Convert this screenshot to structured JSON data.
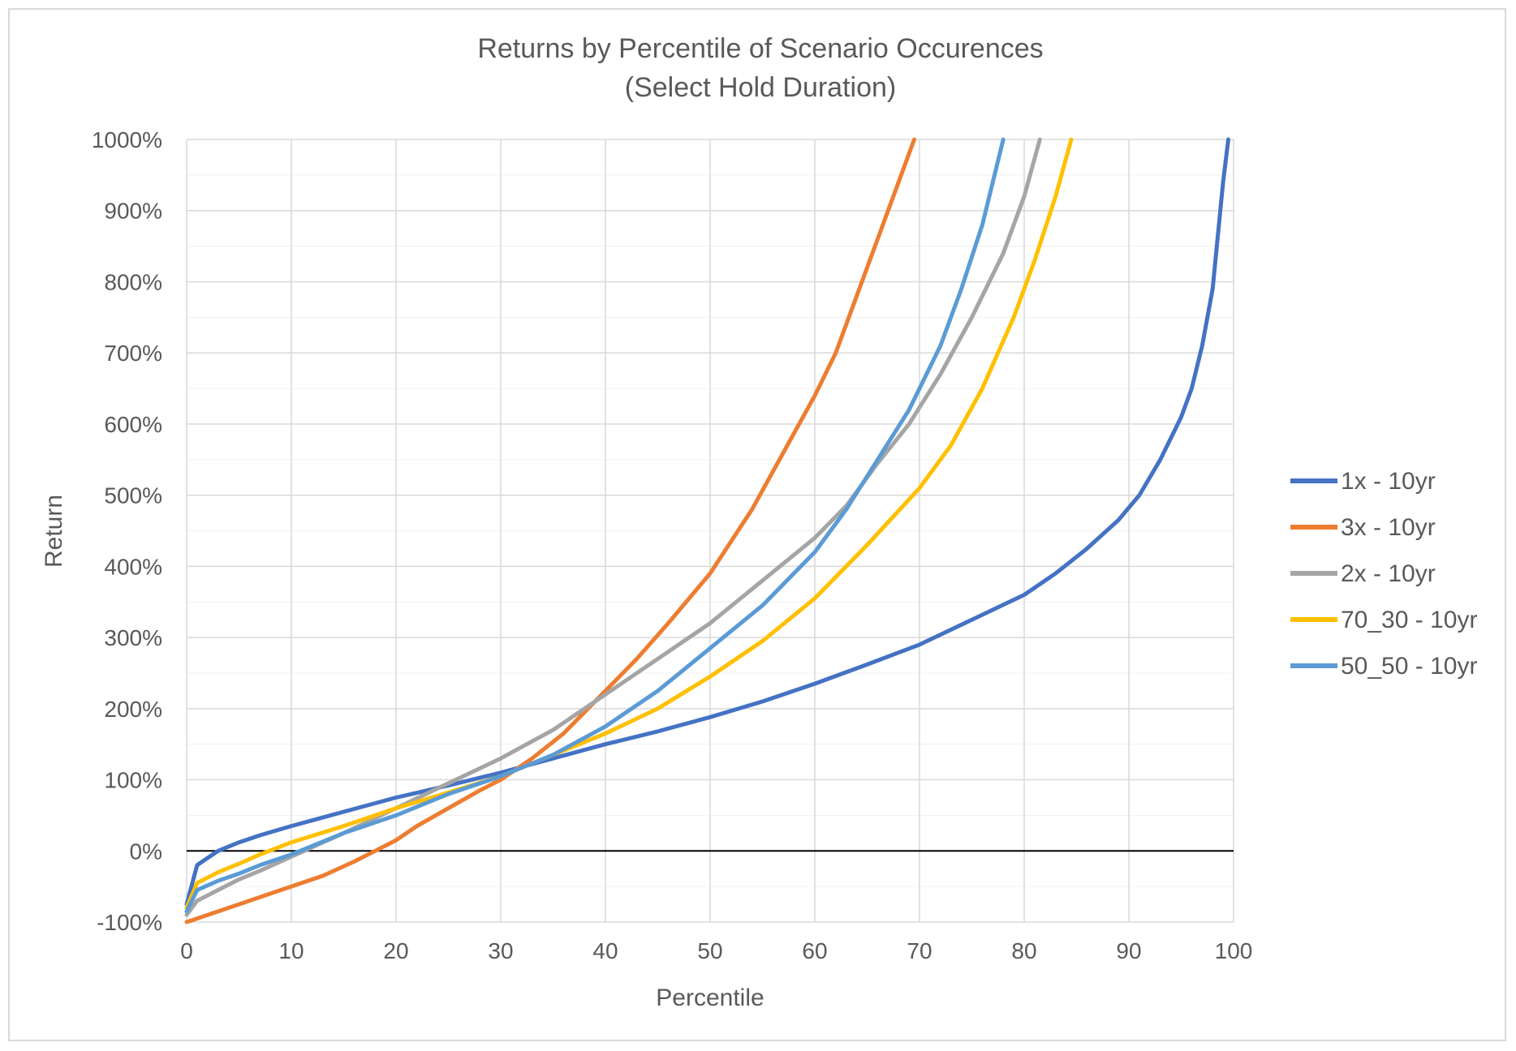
{
  "chart_data": {
    "type": "line",
    "title": "Returns by Percentile of Scenario Occurences",
    "subtitle": "(Select Hold Duration)",
    "xlabel": "Percentile",
    "ylabel": "Return",
    "xlim": [
      0,
      100
    ],
    "ylim": [
      -100,
      1000
    ],
    "x_ticks": [
      "0",
      "10",
      "20",
      "30",
      "40",
      "50",
      "60",
      "70",
      "80",
      "90",
      "100"
    ],
    "y_ticks": [
      "-100%",
      "0%",
      "100%",
      "200%",
      "300%",
      "400%",
      "500%",
      "600%",
      "700%",
      "800%",
      "900%",
      "1000%"
    ],
    "grid": true,
    "legend_position": "right",
    "series": [
      {
        "name": "1x - 10yr",
        "color": "#4472C4",
        "points": [
          [
            0,
            -75
          ],
          [
            1,
            -20
          ],
          [
            2,
            -10
          ],
          [
            3,
            0
          ],
          [
            5,
            12
          ],
          [
            7,
            22
          ],
          [
            10,
            35
          ],
          [
            15,
            55
          ],
          [
            20,
            75
          ],
          [
            25,
            92
          ],
          [
            30,
            110
          ],
          [
            35,
            130
          ],
          [
            40,
            150
          ],
          [
            45,
            168
          ],
          [
            50,
            188
          ],
          [
            55,
            210
          ],
          [
            60,
            235
          ],
          [
            65,
            262
          ],
          [
            70,
            290
          ],
          [
            75,
            325
          ],
          [
            80,
            360
          ],
          [
            83,
            390
          ],
          [
            86,
            425
          ],
          [
            89,
            465
          ],
          [
            91,
            500
          ],
          [
            93,
            550
          ],
          [
            95,
            610
          ],
          [
            96,
            650
          ],
          [
            97,
            710
          ],
          [
            98,
            790
          ],
          [
            99,
            940
          ],
          [
            99.5,
            1000
          ]
        ]
      },
      {
        "name": "3x - 10yr",
        "color": "#ED7D31",
        "points": [
          [
            0,
            -100
          ],
          [
            2,
            -90
          ],
          [
            5,
            -75
          ],
          [
            8,
            -60
          ],
          [
            10,
            -50
          ],
          [
            13,
            -35
          ],
          [
            16,
            -15
          ],
          [
            18,
            0
          ],
          [
            20,
            15
          ],
          [
            22,
            35
          ],
          [
            25,
            60
          ],
          [
            28,
            85
          ],
          [
            30,
            100
          ],
          [
            33,
            130
          ],
          [
            36,
            165
          ],
          [
            40,
            225
          ],
          [
            43,
            270
          ],
          [
            46,
            320
          ],
          [
            50,
            390
          ],
          [
            54,
            480
          ],
          [
            57,
            560
          ],
          [
            60,
            640
          ],
          [
            62,
            700
          ],
          [
            64,
            780
          ],
          [
            66,
            860
          ],
          [
            68,
            940
          ],
          [
            69.5,
            1000
          ]
        ]
      },
      {
        "name": "2x - 10yr",
        "color": "#A5A5A5",
        "points": [
          [
            0,
            -90
          ],
          [
            1,
            -70
          ],
          [
            3,
            -55
          ],
          [
            5,
            -40
          ],
          [
            7,
            -28
          ],
          [
            10,
            -8
          ],
          [
            15,
            25
          ],
          [
            20,
            60
          ],
          [
            25,
            95
          ],
          [
            30,
            130
          ],
          [
            35,
            170
          ],
          [
            40,
            220
          ],
          [
            45,
            270
          ],
          [
            50,
            320
          ],
          [
            55,
            380
          ],
          [
            60,
            440
          ],
          [
            63,
            485
          ],
          [
            66,
            545
          ],
          [
            69,
            600
          ],
          [
            72,
            670
          ],
          [
            75,
            750
          ],
          [
            78,
            840
          ],
          [
            80,
            920
          ],
          [
            81.5,
            1000
          ]
        ]
      },
      {
        "name": "70_30 - 10yr",
        "color": "#FFC000",
        "points": [
          [
            0,
            -80
          ],
          [
            1,
            -45
          ],
          [
            3,
            -30
          ],
          [
            5,
            -18
          ],
          [
            7,
            -5
          ],
          [
            10,
            12
          ],
          [
            15,
            35
          ],
          [
            20,
            60
          ],
          [
            25,
            82
          ],
          [
            30,
            105
          ],
          [
            35,
            135
          ],
          [
            40,
            165
          ],
          [
            45,
            200
          ],
          [
            50,
            245
          ],
          [
            55,
            295
          ],
          [
            60,
            355
          ],
          [
            65,
            430
          ],
          [
            70,
            510
          ],
          [
            73,
            570
          ],
          [
            76,
            650
          ],
          [
            79,
            750
          ],
          [
            81,
            830
          ],
          [
            83,
            920
          ],
          [
            84.5,
            1000
          ]
        ]
      },
      {
        "name": "50_50 - 10yr",
        "color": "#5B9BD5",
        "points": [
          [
            0,
            -85
          ],
          [
            1,
            -55
          ],
          [
            3,
            -42
          ],
          [
            5,
            -32
          ],
          [
            7,
            -20
          ],
          [
            10,
            -5
          ],
          [
            15,
            25
          ],
          [
            20,
            50
          ],
          [
            25,
            80
          ],
          [
            30,
            105
          ],
          [
            35,
            135
          ],
          [
            40,
            175
          ],
          [
            45,
            225
          ],
          [
            50,
            285
          ],
          [
            55,
            345
          ],
          [
            60,
            420
          ],
          [
            63,
            480
          ],
          [
            66,
            550
          ],
          [
            69,
            620
          ],
          [
            72,
            710
          ],
          [
            74,
            790
          ],
          [
            76,
            880
          ],
          [
            78,
            1000
          ]
        ]
      }
    ]
  }
}
